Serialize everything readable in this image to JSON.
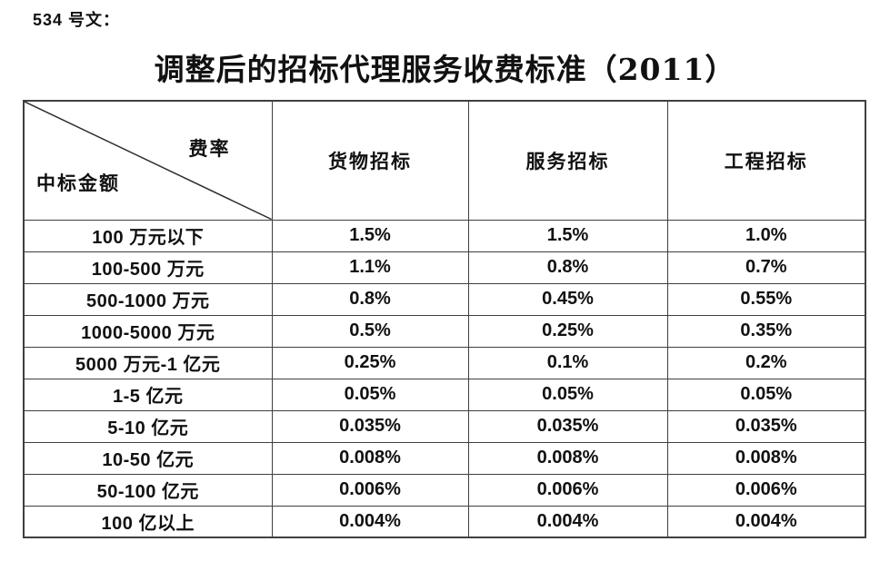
{
  "doc": {
    "doc_number": "534 号文：",
    "title": "调整后的招标代理服务收费标准（2011）"
  },
  "table": {
    "corner": {
      "top_right_label": "费率",
      "bottom_left_label": "中标金额"
    },
    "columns": [
      "货物招标",
      "服务招标",
      "工程招标"
    ],
    "rows": [
      {
        "label": "100 万元以下",
        "values": [
          "1.5%",
          "1.5%",
          "1.0%"
        ]
      },
      {
        "label": "100-500 万元",
        "values": [
          "1.1%",
          "0.8%",
          "0.7%"
        ]
      },
      {
        "label": "500-1000 万元",
        "values": [
          "0.8%",
          "0.45%",
          "0.55%"
        ]
      },
      {
        "label": "1000-5000 万元",
        "values": [
          "0.5%",
          "0.25%",
          "0.35%"
        ]
      },
      {
        "label": "5000 万元-1 亿元",
        "values": [
          "0.25%",
          "0.1%",
          "0.2%"
        ]
      },
      {
        "label": "1-5 亿元",
        "values": [
          "0.05%",
          "0.05%",
          "0.05%"
        ]
      },
      {
        "label": "5-10 亿元",
        "values": [
          "0.035%",
          "0.035%",
          "0.035%"
        ]
      },
      {
        "label": "10-50 亿元",
        "values": [
          "0.008%",
          "0.008%",
          "0.008%"
        ]
      },
      {
        "label": "50-100 亿元",
        "values": [
          "0.006%",
          "0.006%",
          "0.006%"
        ]
      },
      {
        "label": "100 亿以上",
        "values": [
          "0.004%",
          "0.004%",
          "0.004%"
        ]
      }
    ]
  },
  "colors": {
    "background": "#ffffff",
    "text": "#111111",
    "table_border": "#3f3f3f"
  }
}
